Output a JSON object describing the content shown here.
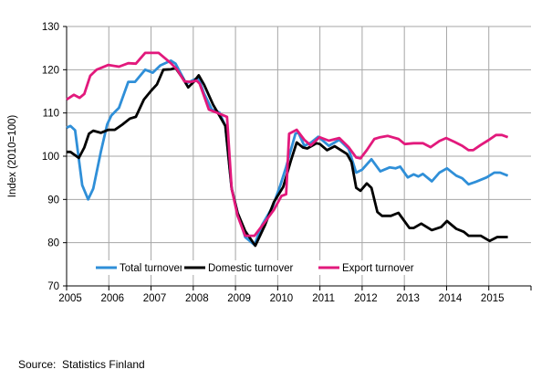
{
  "chart_data": {
    "type": "line",
    "title": "",
    "xlabel": "",
    "ylabel": "Index (2010=100)",
    "xlim": [
      2005,
      2016
    ],
    "ylim": [
      70,
      130
    ],
    "x_ticks": [
      "2005",
      "2006",
      "2007",
      "2008",
      "2009",
      "2010",
      "2011",
      "2012",
      "2013",
      "2014",
      "2015"
    ],
    "y_ticks": [
      "70",
      "80",
      "90",
      "100",
      "110",
      "120",
      "130"
    ],
    "grid": true,
    "legend_position": "bottom-inside",
    "series": [
      {
        "name": "Total turnover",
        "color": "#2f8fd8",
        "points": [
          [
            2005.0,
            106.6
          ],
          [
            2005.09,
            107.0
          ],
          [
            2005.2,
            106.0
          ],
          [
            2005.37,
            93.3
          ],
          [
            2005.51,
            90.0
          ],
          [
            2005.63,
            92.5
          ],
          [
            2005.81,
            101.0
          ],
          [
            2005.96,
            107.3
          ],
          [
            2006.06,
            109.4
          ],
          [
            2006.24,
            111.2
          ],
          [
            2006.46,
            117.2
          ],
          [
            2006.62,
            117.2
          ],
          [
            2006.86,
            120.0
          ],
          [
            2007.04,
            119.3
          ],
          [
            2007.22,
            121.0
          ],
          [
            2007.47,
            122.1
          ],
          [
            2007.58,
            121.4
          ],
          [
            2007.83,
            116.8
          ],
          [
            2008.12,
            118.2
          ],
          [
            2008.26,
            114.4
          ],
          [
            2008.44,
            110.8
          ],
          [
            2008.62,
            110.1
          ],
          [
            2008.76,
            107.0
          ],
          [
            2008.91,
            92.5
          ],
          [
            2009.05,
            86.9
          ],
          [
            2009.23,
            81.3
          ],
          [
            2009.45,
            79.5
          ],
          [
            2009.63,
            84.1
          ],
          [
            2009.88,
            88.3
          ],
          [
            2010.06,
            93.2
          ],
          [
            2010.2,
            97.5
          ],
          [
            2010.42,
            105.2
          ],
          [
            2010.49,
            105.5
          ],
          [
            2010.63,
            102.4
          ],
          [
            2010.78,
            103.1
          ],
          [
            2010.96,
            104.5
          ],
          [
            2011.21,
            102.4
          ],
          [
            2011.46,
            103.8
          ],
          [
            2011.68,
            101.7
          ],
          [
            2011.86,
            96.2
          ],
          [
            2012.0,
            96.9
          ],
          [
            2012.22,
            99.3
          ],
          [
            2012.43,
            96.5
          ],
          [
            2012.65,
            97.4
          ],
          [
            2012.79,
            97.2
          ],
          [
            2012.9,
            97.6
          ],
          [
            2013.08,
            95.1
          ],
          [
            2013.22,
            95.8
          ],
          [
            2013.33,
            95.3
          ],
          [
            2013.44,
            95.9
          ],
          [
            2013.65,
            94.2
          ],
          [
            2013.83,
            96.2
          ],
          [
            2014.01,
            97.2
          ],
          [
            2014.23,
            95.5
          ],
          [
            2014.37,
            94.9
          ],
          [
            2014.52,
            93.5
          ],
          [
            2014.7,
            94.1
          ],
          [
            2014.95,
            95.1
          ],
          [
            2015.13,
            96.2
          ],
          [
            2015.27,
            96.2
          ],
          [
            2015.45,
            95.5
          ]
        ]
      },
      {
        "name": "Domestic turnover",
        "color": "#000000",
        "points": [
          [
            2005.0,
            101.0
          ],
          [
            2005.09,
            101.0
          ],
          [
            2005.29,
            99.6
          ],
          [
            2005.42,
            102.0
          ],
          [
            2005.53,
            105.2
          ],
          [
            2005.63,
            105.9
          ],
          [
            2005.81,
            105.4
          ],
          [
            2005.99,
            106.1
          ],
          [
            2006.14,
            106.1
          ],
          [
            2006.32,
            107.3
          ],
          [
            2006.5,
            108.7
          ],
          [
            2006.64,
            109.1
          ],
          [
            2006.83,
            113.1
          ],
          [
            2007.0,
            115.1
          ],
          [
            2007.14,
            116.6
          ],
          [
            2007.29,
            120.0
          ],
          [
            2007.47,
            120.1
          ],
          [
            2007.58,
            120.4
          ],
          [
            2007.76,
            117.9
          ],
          [
            2007.88,
            115.9
          ],
          [
            2008.01,
            117.2
          ],
          [
            2008.13,
            118.7
          ],
          [
            2008.26,
            116.5
          ],
          [
            2008.47,
            111.9
          ],
          [
            2008.62,
            109.4
          ],
          [
            2008.76,
            107.0
          ],
          [
            2008.91,
            92.5
          ],
          [
            2009.05,
            86.9
          ],
          [
            2009.23,
            82.7
          ],
          [
            2009.47,
            79.3
          ],
          [
            2009.7,
            84.1
          ],
          [
            2009.91,
            89.4
          ],
          [
            2010.13,
            92.9
          ],
          [
            2010.31,
            98.9
          ],
          [
            2010.45,
            103.2
          ],
          [
            2010.6,
            102.0
          ],
          [
            2010.7,
            101.8
          ],
          [
            2010.92,
            103.0
          ],
          [
            2011.0,
            102.8
          ],
          [
            2011.17,
            101.4
          ],
          [
            2011.35,
            102.3
          ],
          [
            2011.64,
            100.5
          ],
          [
            2011.75,
            98.6
          ],
          [
            2011.86,
            92.7
          ],
          [
            2011.96,
            92.0
          ],
          [
            2012.11,
            93.7
          ],
          [
            2012.22,
            92.7
          ],
          [
            2012.36,
            87.1
          ],
          [
            2012.47,
            86.2
          ],
          [
            2012.68,
            86.2
          ],
          [
            2012.86,
            86.9
          ],
          [
            2013.12,
            83.4
          ],
          [
            2013.22,
            83.4
          ],
          [
            2013.4,
            84.4
          ],
          [
            2013.65,
            82.9
          ],
          [
            2013.87,
            83.6
          ],
          [
            2014.01,
            85.0
          ],
          [
            2014.23,
            83.2
          ],
          [
            2014.41,
            82.5
          ],
          [
            2014.52,
            81.6
          ],
          [
            2014.81,
            81.6
          ],
          [
            2015.02,
            80.4
          ],
          [
            2015.2,
            81.3
          ],
          [
            2015.45,
            81.3
          ]
        ]
      },
      {
        "name": "Export turnover",
        "color": "#e2197c",
        "points": [
          [
            2005.0,
            113.1
          ],
          [
            2005.17,
            114.2
          ],
          [
            2005.31,
            113.5
          ],
          [
            2005.42,
            114.4
          ],
          [
            2005.56,
            118.6
          ],
          [
            2005.71,
            120.0
          ],
          [
            2005.99,
            121.1
          ],
          [
            2006.24,
            120.7
          ],
          [
            2006.46,
            121.5
          ],
          [
            2006.64,
            121.4
          ],
          [
            2006.86,
            123.9
          ],
          [
            2007.18,
            123.9
          ],
          [
            2007.47,
            121.5
          ],
          [
            2007.62,
            120.0
          ],
          [
            2007.79,
            117.3
          ],
          [
            2007.94,
            117.2
          ],
          [
            2008.08,
            117.5
          ],
          [
            2008.15,
            116.8
          ],
          [
            2008.37,
            110.8
          ],
          [
            2008.55,
            110.1
          ],
          [
            2008.8,
            109.1
          ],
          [
            2008.91,
            92.5
          ],
          [
            2009.05,
            86.2
          ],
          [
            2009.23,
            81.6
          ],
          [
            2009.45,
            81.6
          ],
          [
            2009.7,
            84.8
          ],
          [
            2009.91,
            87.6
          ],
          [
            2010.09,
            90.8
          ],
          [
            2010.2,
            91.2
          ],
          [
            2010.27,
            105.2
          ],
          [
            2010.45,
            106.1
          ],
          [
            2010.63,
            103.8
          ],
          [
            2010.78,
            102.5
          ],
          [
            2010.99,
            104.4
          ],
          [
            2011.21,
            103.6
          ],
          [
            2011.46,
            104.2
          ],
          [
            2011.68,
            102.1
          ],
          [
            2011.86,
            99.7
          ],
          [
            2011.96,
            99.5
          ],
          [
            2012.11,
            101.4
          ],
          [
            2012.29,
            104.0
          ],
          [
            2012.43,
            104.4
          ],
          [
            2012.61,
            104.7
          ],
          [
            2012.86,
            104.0
          ],
          [
            2013.01,
            102.8
          ],
          [
            2013.22,
            103.0
          ],
          [
            2013.44,
            103.0
          ],
          [
            2013.62,
            102.1
          ],
          [
            2013.83,
            103.5
          ],
          [
            2013.99,
            104.2
          ],
          [
            2014.19,
            103.3
          ],
          [
            2014.37,
            102.4
          ],
          [
            2014.52,
            101.4
          ],
          [
            2014.63,
            101.4
          ],
          [
            2014.81,
            102.6
          ],
          [
            2014.99,
            103.7
          ],
          [
            2015.17,
            104.9
          ],
          [
            2015.31,
            104.9
          ],
          [
            2015.45,
            104.4
          ]
        ]
      }
    ]
  },
  "source": "Source:  Statistics Finland"
}
